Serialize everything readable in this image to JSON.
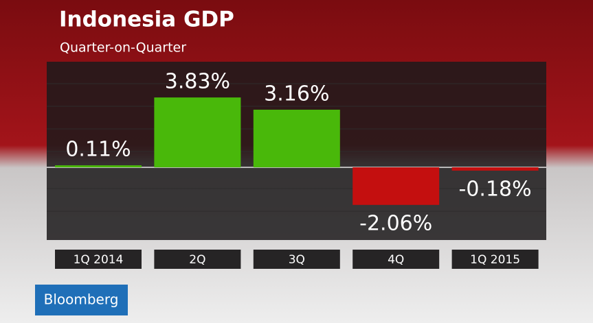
{
  "chart_data": {
    "type": "bar",
    "title": "Indonesia GDP",
    "subtitle": "Quarter-on-Quarter",
    "categories": [
      "1Q 2014",
      "2Q",
      "3Q",
      "4Q",
      "1Q 2015"
    ],
    "values": [
      0.11,
      3.83,
      3.16,
      -2.06,
      -0.18
    ],
    "value_labels": [
      "0.11%",
      "3.83%",
      "3.16%",
      "-2.06%",
      "-0.18%"
    ],
    "colors": [
      "#49b80a",
      "#49b80a",
      "#49b80a",
      "#c40f0f",
      "#c40f0f"
    ],
    "source": "Bloomberg"
  }
}
